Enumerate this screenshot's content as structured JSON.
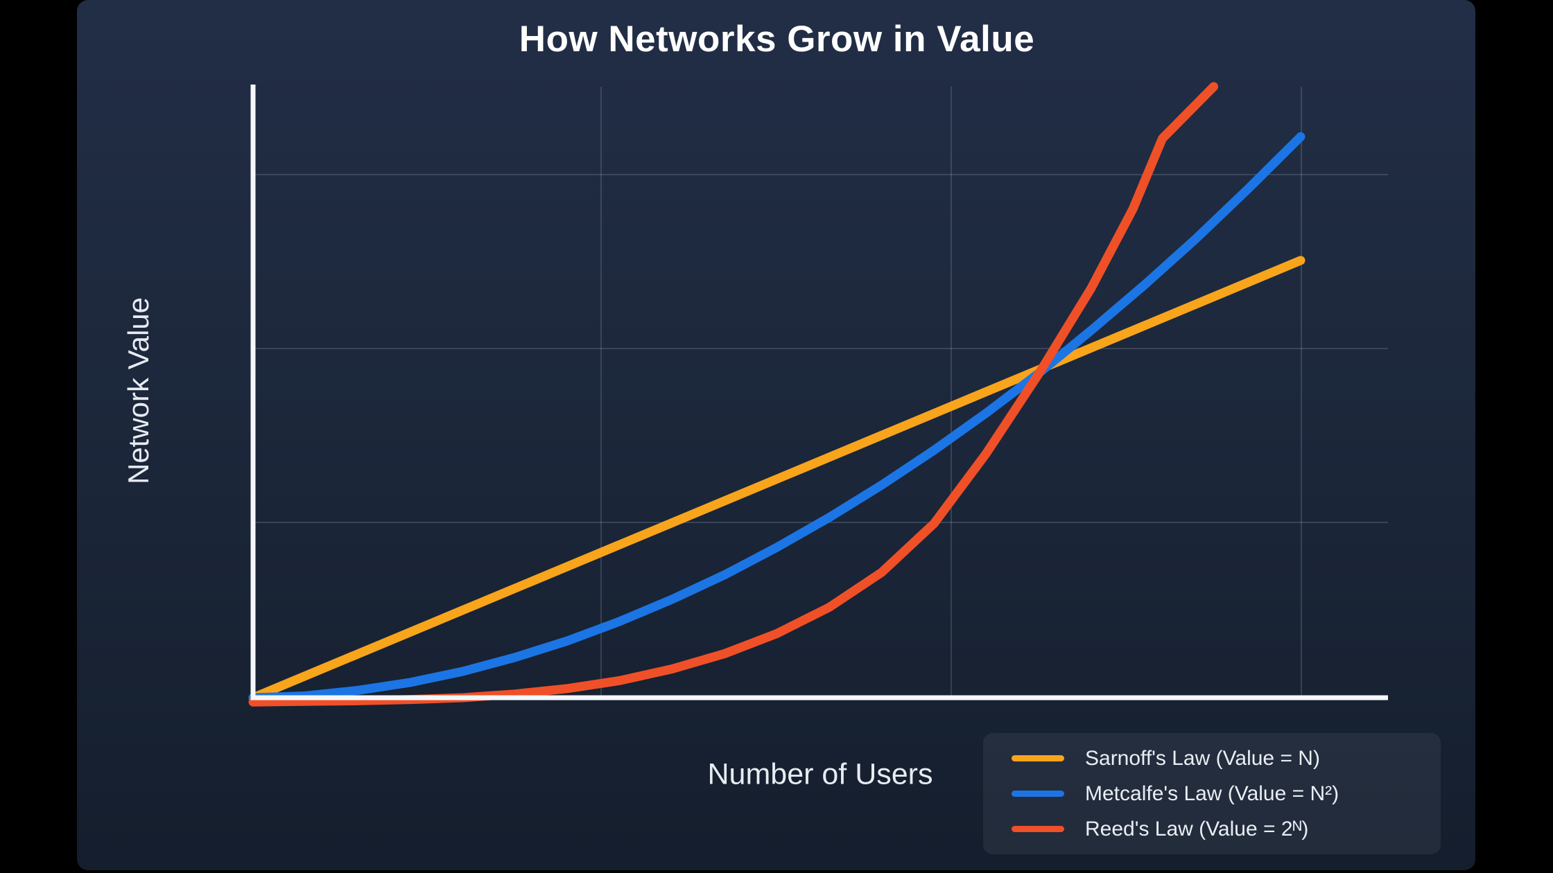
{
  "title": "How Networks Grow in Value",
  "axes": {
    "x_label": "Number of Users",
    "y_label": "Network Value"
  },
  "legend": {
    "items": [
      {
        "label": "Sarnoff's Law (Value = N)",
        "color": "#F8A51C"
      },
      {
        "label": "Metcalfe's Law (Value = N²)",
        "color": "#1C75E4"
      },
      {
        "label": "Reed's Law (Value = 2ᴺ)",
        "color": "#F05027"
      }
    ]
  },
  "chart_data": {
    "type": "line",
    "title": "How Networks Grow in Value",
    "xlabel": "Number of Users",
    "ylabel": "Network Value",
    "ticks": false,
    "xlim": [
      0,
      1
    ],
    "ylim": [
      0,
      1
    ],
    "grid": {
      "visible": true,
      "vertical_lines": 3,
      "horizontal_lines": 3
    },
    "legend_position": "bottom-right",
    "units_note": "axes are unlabeled; point coordinates are normalized fractions of the plotted axis span",
    "series": [
      {
        "name": "Sarnoff's Law (Value = N)",
        "formula": "Value = N",
        "growth": "linear",
        "color": "#F8A51C",
        "points": [
          [
            0,
            0
          ],
          [
            1,
            0.7155
          ]
        ]
      },
      {
        "name": "Metcalfe's Law (Value = N²)",
        "formula": "Value = N²",
        "growth": "quadratic",
        "color": "#1C75E4",
        "points": [
          [
            0,
            0
          ],
          [
            0.05,
            0.003
          ],
          [
            0.1,
            0.012
          ],
          [
            0.15,
            0.025
          ],
          [
            0.2,
            0.043
          ],
          [
            0.25,
            0.066
          ],
          [
            0.3,
            0.093
          ],
          [
            0.35,
            0.125
          ],
          [
            0.4,
            0.161
          ],
          [
            0.45,
            0.201
          ],
          [
            0.5,
            0.246
          ],
          [
            0.55,
            0.295
          ],
          [
            0.6,
            0.348
          ],
          [
            0.65,
            0.405
          ],
          [
            0.7,
            0.466
          ],
          [
            0.75,
            0.531
          ],
          [
            0.8,
            0.601
          ],
          [
            0.85,
            0.674
          ],
          [
            0.9,
            0.751
          ],
          [
            0.95,
            0.833
          ],
          [
            1,
            0.918
          ]
        ]
      },
      {
        "name": "Reed's Law (Value = 2ᴺ)",
        "formula": "Value = 2ᴺ",
        "growth": "exponential",
        "color": "#F05027",
        "points": [
          [
            0,
            -0.007
          ],
          [
            0.05,
            -0.006
          ],
          [
            0.1,
            -0.005
          ],
          [
            0.15,
            -0.003
          ],
          [
            0.2,
            0.0
          ],
          [
            0.25,
            0.006
          ],
          [
            0.3,
            0.015
          ],
          [
            0.35,
            0.028
          ],
          [
            0.4,
            0.047
          ],
          [
            0.45,
            0.072
          ],
          [
            0.5,
            0.105
          ],
          [
            0.55,
            0.148
          ],
          [
            0.6,
            0.205
          ],
          [
            0.65,
            0.285
          ],
          [
            0.7,
            0.4
          ],
          [
            0.75,
            0.53
          ],
          [
            0.8,
            0.67
          ],
          [
            0.84,
            0.8
          ],
          [
            0.868,
            0.915
          ],
          [
            0.917,
            1.0
          ]
        ]
      }
    ],
    "colors": {
      "axis": "#F4F7FB",
      "grid": "rgba(214,226,245,0.16)",
      "background_top": "#222E46",
      "background_bottom": "#141E2D",
      "legend_panel": "rgba(235,242,255,0.065)",
      "title_text": "#FFFFFF",
      "label_text": "#E8ECF2"
    }
  }
}
